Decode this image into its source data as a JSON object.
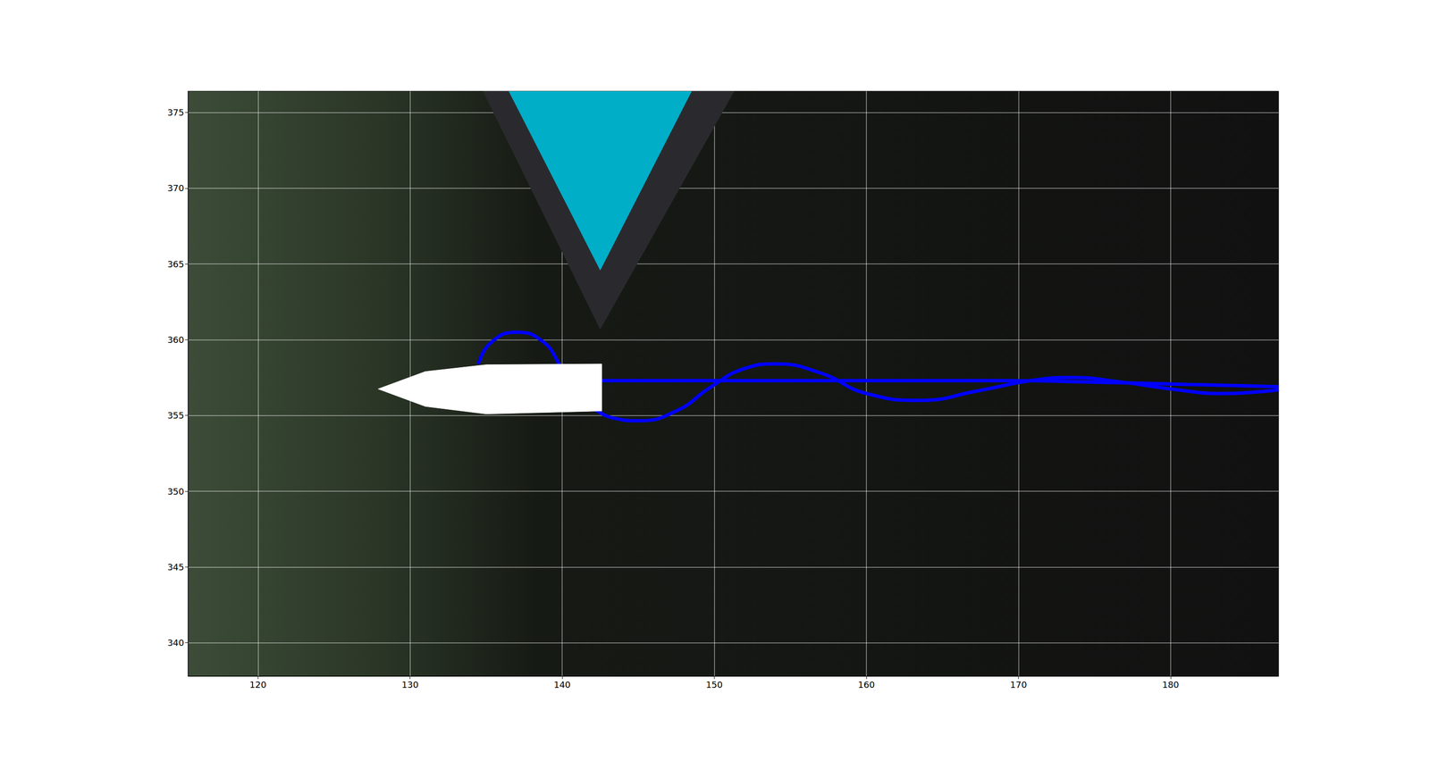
{
  "chart_data": {
    "type": "line",
    "xlim": [
      115.4,
      187.1
    ],
    "ylim": [
      337.8,
      376.4
    ],
    "xticks": [
      120,
      130,
      140,
      150,
      160,
      170,
      180
    ],
    "yticks": [
      340,
      345,
      350,
      355,
      360,
      365,
      370,
      375
    ],
    "grid": true,
    "series": [
      {
        "color": "#0000ff",
        "x": [
          142.6,
          150,
          160,
          169,
          175,
          181,
          187.1
        ],
        "values": [
          357.3,
          357.3,
          357.3,
          357.3,
          357.2,
          357.05,
          356.9
        ]
      },
      {
        "color": "#0000ff",
        "x": [
          134.5,
          135.3,
          137.0,
          138.7,
          139.8,
          140.5,
          141.3,
          142.3,
          143.5,
          145.0,
          147.5,
          149.8,
          152.0,
          154.0,
          157.0,
          160.0,
          163.6,
          167.2,
          170.8,
          173.5,
          176.8,
          180.4,
          183.4,
          187.1
        ],
        "values": [
          358.4,
          359.8,
          360.5,
          359.9,
          358.4,
          357.0,
          356.0,
          355.3,
          354.8,
          354.65,
          355.3,
          356.9,
          358.1,
          358.4,
          357.8,
          356.45,
          356.0,
          356.6,
          357.3,
          357.5,
          357.2,
          356.7,
          356.45,
          356.7
        ]
      }
    ],
    "obstacle_margin": {
      "color": "#2a2a2e",
      "x": [
        134.8,
        151.3,
        142.5
      ],
      "y": [
        376.4,
        376.4,
        360.7
      ]
    },
    "obstacle": {
      "color": "#00aec8",
      "x": [
        136.5,
        148.5,
        142.5
      ],
      "y": [
        376.4,
        376.4,
        364.6
      ]
    },
    "boat": {
      "color": "#ffffff",
      "x": [
        127.9,
        131.0,
        135.0,
        142.6,
        142.6,
        135.0,
        131.0
      ],
      "y": [
        356.75,
        357.9,
        358.35,
        358.4,
        355.3,
        355.1,
        355.6
      ]
    }
  }
}
